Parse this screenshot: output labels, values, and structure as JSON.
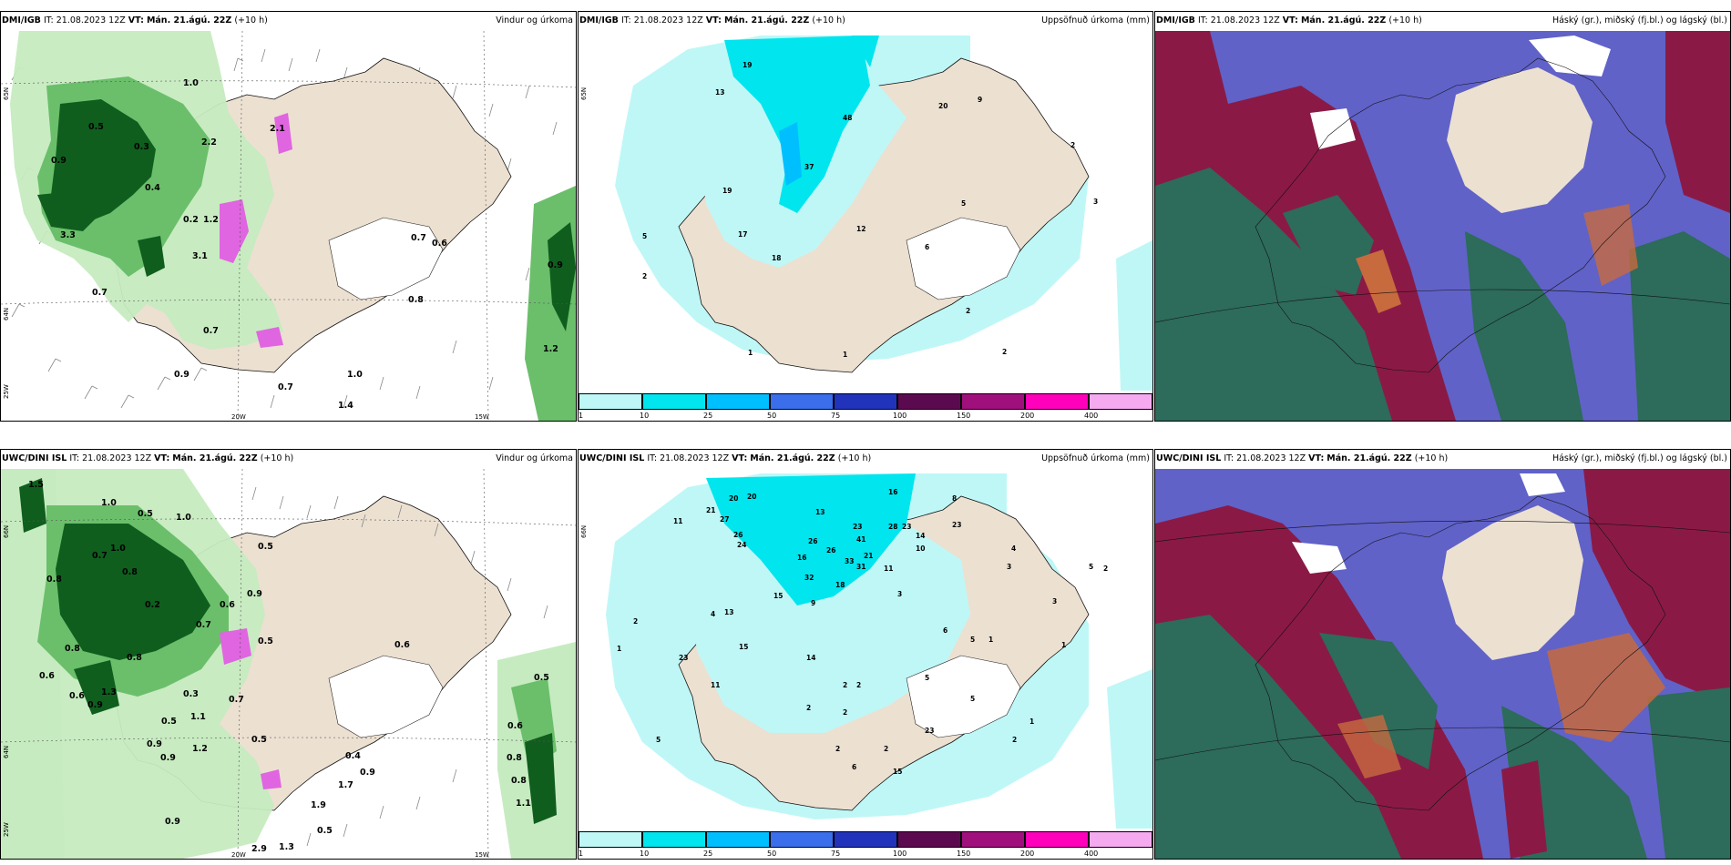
{
  "panels": {
    "p1": {
      "model": "DMI/IGB",
      "it": "IT: 21.08.2023 12Z",
      "vt_label": "VT:",
      "vt": "Mán. 21.ágú. 22Z",
      "lead": "(+10 h)",
      "title": "Vindur og úrkoma",
      "axis": {
        "lat1": "65N",
        "lat2": "64N",
        "lat3": "25W",
        "lon1": "20W",
        "lon2": "15W"
      },
      "labels": [
        "1.0",
        "0.5",
        "0.3",
        "2.2",
        "0.9",
        "0.4",
        "0.2",
        "1.2",
        "3.3",
        "3.1",
        "0.7",
        "0.6",
        "0.7",
        "1.0",
        "0.9",
        "0.7",
        "1.4",
        "0.8",
        "0.9",
        "1.2",
        "2.1",
        "0.7"
      ]
    },
    "p2": {
      "model": "DMI/IGB",
      "it": "IT: 21.08.2023 12Z",
      "vt_label": "VT:",
      "vt": "Mán. 21.ágú. 22Z",
      "lead": "(+10 h)",
      "title": "Uppsöfnuð úrkoma (mm)",
      "axis": {
        "lat1": "65N"
      },
      "labels": [
        "19",
        "13",
        "48",
        "20",
        "9",
        "37",
        "19",
        "17",
        "5",
        "2",
        "18",
        "12",
        "5",
        "6",
        "2",
        "2",
        "1",
        "1",
        "3",
        "2"
      ]
    },
    "p3": {
      "model": "DMI/IGB",
      "it": "IT: 21.08.2023 12Z",
      "vt_label": "VT:",
      "vt": "Mán. 21.ágú. 22Z",
      "lead": "(+10 h)",
      "title": "Háský (gr.), miðský (fj.bl.) og lágský (bl.)"
    },
    "p4": {
      "model": "UWC/DINI ISL",
      "it": "IT: 21.08.2023 12Z",
      "vt_label": "VT:",
      "vt": "Mán. 21.ágú. 22Z",
      "lead": "(+10 h)",
      "title": "Vindur og úrkoma",
      "axis": {
        "lat1": "66N",
        "lat2": "64N",
        "lat3": "25W",
        "lon1": "20W",
        "lon2": "15W"
      },
      "labels": [
        "1.5",
        "1.0",
        "0.5",
        "1.0",
        "1.0",
        "0.8",
        "0.7",
        "0.5",
        "0.8",
        "0.2",
        "0.6",
        "0.9",
        "0.7",
        "0.8",
        "0.6",
        "0.3",
        "0.5",
        "0.8",
        "0.9",
        "1.3",
        "0.6",
        "0.5",
        "1.1",
        "0.7",
        "0.9",
        "0.9",
        "1.2",
        "0.5",
        "0.6",
        "0.4",
        "0.9",
        "1.9",
        "1.7",
        "0.5",
        "0.5",
        "0.6",
        "0.8",
        "0.8",
        "1.1",
        "0.9",
        "2.9",
        "1.3"
      ]
    },
    "p5": {
      "model": "UWC/DINI ISL",
      "it": "IT: 21.08.2023 12Z",
      "vt_label": "VT:",
      "vt": "Mán. 21.ágú. 22Z",
      "lead": "(+10 h)",
      "title": "Uppsöfnuð úrkoma (mm)",
      "axis": {
        "lat1": "66N"
      },
      "labels": [
        "20",
        "20",
        "16",
        "8",
        "13",
        "21",
        "27",
        "26",
        "11",
        "23",
        "28",
        "23",
        "24",
        "26",
        "26",
        "33",
        "41",
        "14",
        "16",
        "21",
        "31",
        "10",
        "23",
        "11",
        "32",
        "18",
        "4",
        "3",
        "9",
        "15",
        "4",
        "13",
        "15",
        "2",
        "23",
        "11",
        "3",
        "5",
        "2",
        "3",
        "1",
        "14",
        "5",
        "1",
        "2",
        "2",
        "6",
        "5",
        "23",
        "5",
        "2",
        "1",
        "5",
        "15",
        "2",
        "2",
        "6",
        "1",
        "2",
        "2"
      ]
    },
    "p6": {
      "model": "UWC/DINI ISL",
      "it": "IT: 21.08.2023 12Z",
      "vt_label": "VT:",
      "vt": "Mán. 21.ágú. 22Z",
      "lead": "(+10 h)",
      "title": "Háský (gr.), miðský (fj.bl.) og lágský (bl.)"
    }
  },
  "colorbar": {
    "ticks": [
      "1",
      "10",
      "25",
      "50",
      "75",
      "100",
      "150",
      "200",
      "400"
    ],
    "colors": [
      "#bff7f7",
      "#00e5ee",
      "#00bfff",
      "#3a6eea",
      "#2233bb",
      "#5c0a4f",
      "#a0107c",
      "#ff00bb",
      "#f5aaf0"
    ]
  },
  "palette": {
    "land": "#ece0d1",
    "precip_light": "#c6ebc0",
    "precip_mid": "#6bbf6b",
    "precip_dark": "#0f5e1e",
    "precip_high": "#e065e0",
    "accum_light": "#bff7f7",
    "accum_mid": "#00e5ee",
    "cloud_high": "#6062c8",
    "cloud_mid": "#8a1a45",
    "cloud_low": "#2d6b5a"
  }
}
